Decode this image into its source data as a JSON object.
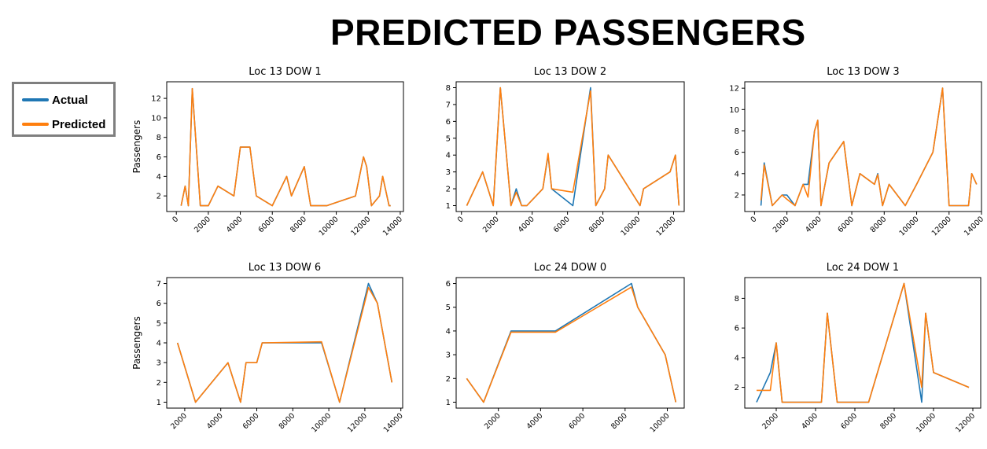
{
  "title": "PREDICTED PASSENGERS",
  "legend": [
    {
      "label": "Actual",
      "color": "#1f77b4"
    },
    {
      "label": "Predicted",
      "color": "#ff7f0e"
    }
  ],
  "chart_data": [
    {
      "type": "line",
      "title": "Loc 13 DOW 1",
      "xlabel": "",
      "ylabel": "Passengers",
      "xlim": [
        -600,
        14200
      ],
      "ylim": [
        0.4,
        13.7
      ],
      "xticks": [
        0,
        2000,
        4000,
        6000,
        8000,
        10000,
        12000,
        14000
      ],
      "yticks": [
        2,
        4,
        6,
        8,
        10,
        12
      ],
      "series": [
        {
          "name": "Actual",
          "x": [
            300,
            550,
            750,
            1000,
            1500,
            2000,
            2600,
            3600,
            4000,
            4600,
            5000,
            6000,
            6900,
            7200,
            8000,
            8400,
            9400,
            11200,
            11700,
            11900,
            12200,
            12700,
            12900,
            13300,
            13400
          ],
          "y": [
            1,
            3,
            1,
            13,
            1,
            1,
            3,
            2,
            7,
            7,
            2,
            1,
            4,
            2,
            5,
            1,
            1,
            2,
            6,
            5,
            1,
            2,
            4,
            1,
            1
          ]
        },
        {
          "name": "Predicted",
          "x": [
            300,
            550,
            750,
            1000,
            1500,
            2000,
            2600,
            3600,
            4000,
            4600,
            5000,
            6000,
            6900,
            7200,
            8000,
            8400,
            9400,
            11200,
            11700,
            11900,
            12200,
            12700,
            12900,
            13300,
            13400
          ],
          "y": [
            1,
            3,
            1,
            13,
            1,
            1,
            3,
            2,
            7,
            7,
            2,
            1,
            4,
            2,
            5,
            1,
            1,
            2,
            6,
            5,
            1,
            2,
            4,
            1,
            1
          ]
        }
      ]
    },
    {
      "type": "line",
      "title": "Loc 13 DOW 2",
      "xlabel": "",
      "ylabel": "",
      "xlim": [
        -300,
        12600
      ],
      "ylim": [
        0.65,
        8.35
      ],
      "xticks": [
        0,
        2000,
        4000,
        6000,
        8000,
        10000,
        12000
      ],
      "yticks": [
        1,
        2,
        3,
        4,
        5,
        6,
        7,
        8
      ],
      "series": [
        {
          "name": "Actual",
          "x": [
            300,
            1200,
            1800,
            2200,
            2800,
            3100,
            3400,
            3700,
            4600,
            4900,
            5100,
            6300,
            7300,
            7600,
            8100,
            8300,
            10100,
            10300,
            11800,
            12100,
            12300
          ],
          "y": [
            1,
            3,
            1,
            8,
            1,
            2,
            1,
            1,
            2,
            4,
            2,
            1,
            8,
            1,
            2,
            4,
            1,
            2,
            3,
            4,
            1
          ]
        },
        {
          "name": "Predicted",
          "x": [
            300,
            1200,
            1800,
            2200,
            2800,
            3100,
            3400,
            3700,
            4600,
            4900,
            5100,
            6300,
            7300,
            7600,
            8100,
            8300,
            10100,
            10300,
            11800,
            12100,
            12300
          ],
          "y": [
            1,
            3,
            1,
            8,
            1,
            1.8,
            1,
            1,
            2,
            4.1,
            2,
            1.8,
            7.8,
            1,
            2,
            4,
            1,
            2,
            3,
            4,
            1
          ]
        }
      ]
    },
    {
      "type": "line",
      "title": "Loc 13 DOW 3",
      "xlabel": "",
      "ylabel": "",
      "xlim": [
        -600,
        14000
      ],
      "ylim": [
        0.45,
        12.6
      ],
      "xticks": [
        0,
        2000,
        4000,
        6000,
        8000,
        10000,
        12000,
        14000
      ],
      "yticks": [
        2,
        4,
        6,
        8,
        10,
        12
      ],
      "series": [
        {
          "name": "Actual",
          "x": [
            400,
            600,
            1100,
            1700,
            2000,
            2500,
            3000,
            3300,
            3700,
            3900,
            4100,
            4600,
            5500,
            6000,
            6500,
            7400,
            7600,
            7900,
            8300,
            9300,
            10000,
            11000,
            11600,
            12000,
            13200,
            13400,
            13700
          ],
          "y": [
            1,
            5,
            1,
            2,
            2,
            1,
            3,
            3,
            8,
            9,
            1,
            5,
            7,
            1,
            4,
            3,
            4,
            1,
            3,
            1,
            3,
            6,
            12,
            1,
            1,
            4,
            3
          ]
        },
        {
          "name": "Predicted",
          "x": [
            400,
            600,
            1100,
            1700,
            2000,
            2500,
            3000,
            3300,
            3700,
            3900,
            4100,
            4600,
            5500,
            6000,
            6500,
            7400,
            7600,
            7900,
            8300,
            9300,
            10000,
            11000,
            11600,
            12000,
            13200,
            13400,
            13700
          ],
          "y": [
            1.5,
            4.8,
            1,
            2,
            1.6,
            1,
            3,
            1.8,
            8,
            9,
            1,
            5,
            7,
            1,
            4,
            3,
            3.9,
            1,
            3,
            1,
            3,
            6,
            12,
            1,
            1,
            4,
            3
          ]
        }
      ]
    },
    {
      "type": "line",
      "title": "Loc 13 DOW 6",
      "xlabel": "",
      "ylabel": "Passengers",
      "xlim": [
        1000,
        14100
      ],
      "ylim": [
        0.7,
        7.3
      ],
      "xticks": [
        2000,
        4000,
        6000,
        8000,
        10000,
        12000,
        14000
      ],
      "yticks": [
        1,
        2,
        3,
        4,
        5,
        6,
        7
      ],
      "series": [
        {
          "name": "Actual",
          "x": [
            1600,
            2600,
            4400,
            5100,
            5400,
            6000,
            6300,
            9600,
            10600,
            12200,
            12700,
            13500
          ],
          "y": [
            4,
            1,
            3,
            1,
            3,
            3,
            4,
            4,
            1,
            7,
            6,
            2
          ]
        },
        {
          "name": "Predicted",
          "x": [
            1600,
            2600,
            4400,
            5100,
            5400,
            6000,
            6300,
            9600,
            10600,
            12200,
            12700,
            13500
          ],
          "y": [
            4,
            1,
            3,
            1,
            3,
            3,
            4,
            4.05,
            1,
            6.8,
            6,
            2
          ]
        }
      ]
    },
    {
      "type": "line",
      "title": "Loc 24 DOW 0",
      "xlabel": "",
      "ylabel": "",
      "xlim": [
        0,
        10800
      ],
      "ylim": [
        0.75,
        6.25
      ],
      "xticks": [
        2000,
        4000,
        6000,
        8000,
        10000
      ],
      "yticks": [
        1,
        2,
        3,
        4,
        5,
        6
      ],
      "series": [
        {
          "name": "Actual",
          "x": [
            500,
            1300,
            2600,
            4700,
            8300,
            8600,
            9900,
            10400
          ],
          "y": [
            2,
            1,
            4,
            4,
            6,
            5,
            3,
            1
          ]
        },
        {
          "name": "Predicted",
          "x": [
            500,
            1300,
            2600,
            4700,
            8300,
            8600,
            9900,
            10400
          ],
          "y": [
            2,
            1,
            3.95,
            3.95,
            5.85,
            5,
            3,
            1
          ]
        }
      ]
    },
    {
      "type": "line",
      "title": "Loc 24 DOW 1",
      "xlabel": "",
      "ylabel": "",
      "xlim": [
        400,
        12400
      ],
      "ylim": [
        0.6,
        9.4
      ],
      "xticks": [
        2000,
        4000,
        6000,
        8000,
        10000,
        12000
      ],
      "yticks": [
        2,
        4,
        6,
        8
      ],
      "series": [
        {
          "name": "Actual",
          "x": [
            1000,
            1700,
            2000,
            2300,
            4300,
            4600,
            5100,
            6700,
            8500,
            9400,
            9600,
            10000,
            11800
          ],
          "y": [
            1,
            3,
            5,
            1,
            1,
            7,
            1,
            1,
            9,
            1,
            7,
            3,
            2
          ]
        },
        {
          "name": "Predicted",
          "x": [
            1000,
            1700,
            2000,
            2300,
            4300,
            4600,
            5100,
            6700,
            8500,
            9400,
            9600,
            10000,
            11800
          ],
          "y": [
            1.8,
            1.8,
            5,
            1,
            1,
            7,
            1,
            1,
            9,
            2,
            7,
            3,
            2
          ]
        }
      ]
    }
  ]
}
